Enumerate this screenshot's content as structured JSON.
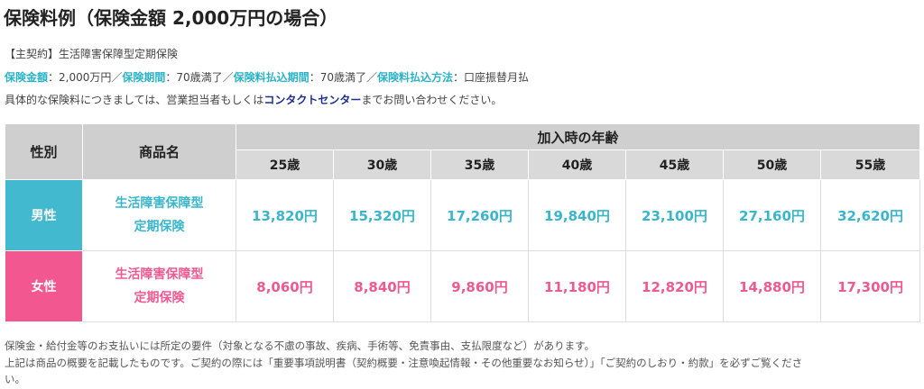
{
  "heading": "保険料例（保険金額 2,000万円の場合）",
  "contract": "【主契約】生活障害保障型定期保険",
  "terms": {
    "sum_label": "保険金額",
    "sum_value": "：2,000万円／",
    "period_label": "保険期間",
    "period_value": "：70歳満了／",
    "pay_period_label": "保険料払込期間",
    "pay_period_value": "：70歳満了／",
    "pay_method_label": "保険料払込方法",
    "pay_method_value": "：口座振替月払"
  },
  "inquiry": {
    "before": "具体的な保険料につきましては、営業担当者もしくは",
    "link": "コンタクトセンター",
    "after": "までお問い合わせください。"
  },
  "table": {
    "col_gender": "性別",
    "col_product": "商品名",
    "col_age_group": "加入時の年齢",
    "ages": [
      "25歳",
      "30歳",
      "35歳",
      "40歳",
      "45歳",
      "50歳",
      "55歳"
    ],
    "rows": [
      {
        "gender": "男性",
        "product_line1": "生活障害保障型",
        "product_line2": "定期保険",
        "values": [
          "13,820円",
          "15,320円",
          "17,260円",
          "19,840円",
          "23,100円",
          "27,160円",
          "32,620円"
        ]
      },
      {
        "gender": "女性",
        "product_line1": "生活障害保障型",
        "product_line2": "定期保険",
        "values": [
          "8,060円",
          "8,840円",
          "9,860円",
          "11,180円",
          "12,820円",
          "14,880円",
          "17,300円"
        ]
      }
    ]
  },
  "notes": {
    "line1": "保険金・給付金等のお支払いには所定の要件（対象となる不慮の事故、疾病、手術等、免責事由、支払限度など）があります。",
    "line2": "上記は商品の概要を記載したものです。ご契約の際には「重要事項説明書（契約概要・注意喚起情報・その他重要なお知らせ）」「ご契約のしおり・約款」を必ずご覧くださ",
    "line3": "い。"
  },
  "colors": {
    "male": "#43b9cf",
    "female": "#f2578f",
    "header_gray": "#cfcfcf",
    "link_navy": "#1f2f8c",
    "label_teal": "#2bb3c8"
  }
}
